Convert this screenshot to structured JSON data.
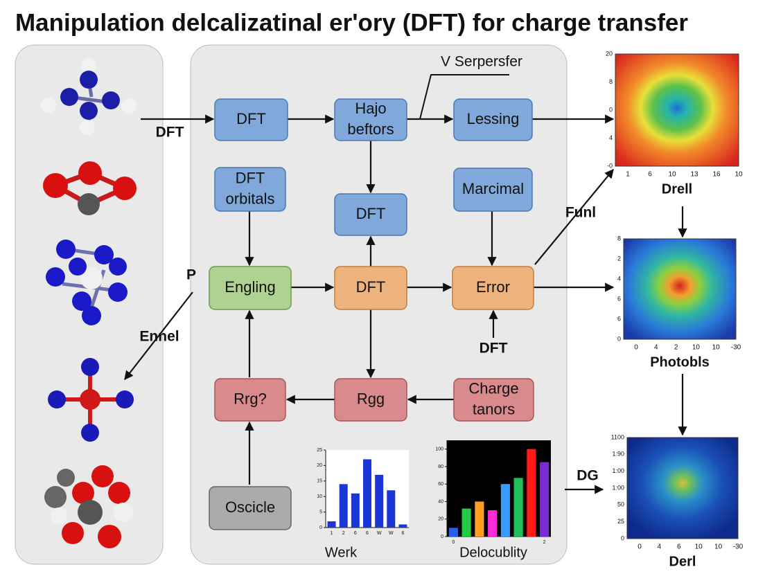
{
  "title": "Manipulation delcalizatinal er'ory (DFT) for charge transfer",
  "nodes": [
    {
      "label": [
        "DFT"
      ]
    },
    {
      "label": [
        "Hajo",
        "beftors"
      ]
    },
    {
      "label": [
        "Lessing"
      ]
    },
    {
      "label": [
        "DFT",
        "orbitals"
      ]
    },
    {
      "label": [
        "DFT"
      ]
    },
    {
      "label": [
        "Marcimal"
      ]
    },
    {
      "label": [
        "Engling"
      ]
    },
    {
      "label": [
        "DFT"
      ]
    },
    {
      "label": [
        "Error"
      ]
    },
    {
      "label": [
        "Rrg?"
      ]
    },
    {
      "label": [
        "Rgg"
      ]
    },
    {
      "label": [
        "Charge",
        "tanors"
      ]
    },
    {
      "label": [
        "Oscicle"
      ]
    }
  ],
  "edge_labels": [
    "DFT",
    "V Serpersfer",
    "Funl",
    "P",
    "Ennel",
    "DFT",
    "DG"
  ],
  "heatmaps": [
    {
      "caption": "Drell",
      "ylabels": [
        "20",
        "8",
        "0",
        "4",
        "-0"
      ],
      "xlabels": [
        "1",
        "6",
        "10",
        "13",
        "16",
        "10"
      ]
    },
    {
      "caption": "Photobls",
      "ylabels": [
        "8",
        "2",
        "4",
        "6",
        "6",
        "0"
      ],
      "xlabels": [
        "0",
        "4",
        "2",
        "10",
        "10",
        "-30"
      ]
    },
    {
      "caption": "Derl",
      "ylabels": [
        "1100",
        "1:90",
        "1:00",
        "1:00",
        "50",
        "25",
        "0"
      ],
      "xlabels": [
        "0",
        "4",
        "6",
        "10",
        "10",
        "-30"
      ]
    }
  ],
  "mini_charts": [
    {
      "type": "bar",
      "title": "Werk",
      "categories": [
        "1",
        "2",
        "6",
        "6",
        "W",
        "W",
        "6"
      ],
      "values": [
        2,
        14,
        11,
        22,
        17,
        12,
        1
      ],
      "color": "#1a36d6",
      "ylim": [
        0,
        25
      ],
      "yticks": [
        0,
        5,
        10,
        15,
        20,
        25
      ]
    },
    {
      "type": "bar",
      "title": "Delocublity",
      "categories": [
        "0",
        null,
        null,
        null,
        null,
        null,
        null,
        "2"
      ],
      "values": [
        10,
        32,
        40,
        30,
        60,
        67,
        100,
        85
      ],
      "colors": [
        "#2a5de8",
        "#22cc44",
        "#ff9d1f",
        "#ff2bd6",
        "#3a9bff",
        "#1fbf5a",
        "#ff1a1a",
        "#7a2bd6"
      ],
      "ylim": [
        0,
        110
      ],
      "yticks": [
        0,
        20,
        40,
        60,
        80,
        100
      ]
    }
  ]
}
